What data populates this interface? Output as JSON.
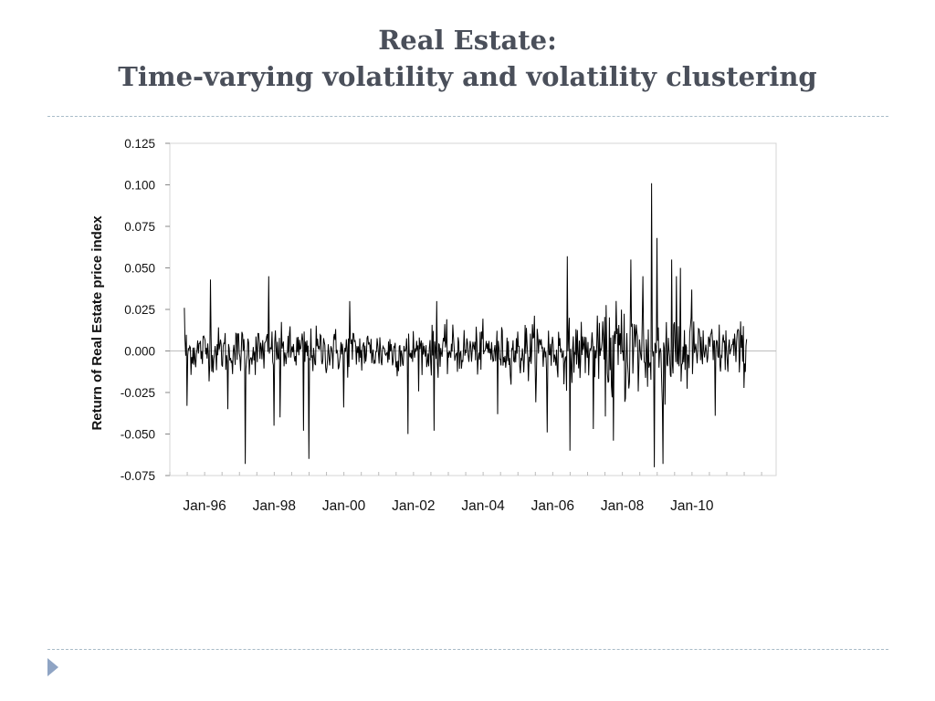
{
  "slide": {
    "title_line1": "Real Estate:",
    "title_line2": "Time-varying volatility and volatility clustering",
    "accent_color": "#4a4f5a",
    "rule_color": "#a9bcc8",
    "nav_icon": "play-triangle-icon"
  },
  "chart_data": {
    "type": "line",
    "title": "",
    "ylabel": "Return of Real Estate price index",
    "xlabel": "",
    "ylim": [
      -0.075,
      0.125
    ],
    "y_ticks": [
      -0.075,
      -0.05,
      -0.025,
      0.0,
      0.025,
      0.05,
      0.075,
      0.1,
      0.125
    ],
    "y_tick_labels": [
      "-0.075",
      "-0.050",
      "-0.025",
      "0.000",
      "0.025",
      "0.050",
      "0.075",
      "0.100",
      "0.125"
    ],
    "x_range": [
      "1995-01",
      "2012-06"
    ],
    "x_tick_labels": [
      "Jan-96",
      "Jan-98",
      "Jan-00",
      "Jan-02",
      "Jan-04",
      "Jan-06",
      "Jan-08",
      "Jan-10"
    ],
    "x_tick_dates": [
      "1996-01",
      "1998-01",
      "2000-01",
      "2002-01",
      "2004-01",
      "2006-01",
      "2008-01",
      "2010-01"
    ],
    "series_start": "1995-06",
    "series_end": "2011-08",
    "grid": false,
    "legend": "none",
    "line_color": "#000000",
    "volatility_regimes": [
      {
        "from": "1995-06",
        "to": "2004-12",
        "typical_amplitude": 0.01
      },
      {
        "from": "2005-01",
        "to": "2007-06",
        "typical_amplitude": 0.013
      },
      {
        "from": "2007-07",
        "to": "2009-12",
        "typical_amplitude": 0.022
      },
      {
        "from": "2010-01",
        "to": "2011-08",
        "typical_amplitude": 0.012
      }
    ],
    "notable_spikes": [
      {
        "date": "1995-06",
        "y": 0.026
      },
      {
        "date": "1995-07",
        "y": -0.033
      },
      {
        "date": "1996-03",
        "y": 0.043
      },
      {
        "date": "1996-09",
        "y": -0.035
      },
      {
        "date": "1997-03",
        "y": -0.068
      },
      {
        "date": "1997-11",
        "y": 0.045
      },
      {
        "date": "1998-01",
        "y": -0.045
      },
      {
        "date": "1998-03",
        "y": -0.04
      },
      {
        "date": "1998-11",
        "y": -0.048
      },
      {
        "date": "1999-01",
        "y": -0.065
      },
      {
        "date": "2000-01",
        "y": -0.034
      },
      {
        "date": "2000-03",
        "y": 0.03
      },
      {
        "date": "2001-11",
        "y": -0.05
      },
      {
        "date": "2002-08",
        "y": -0.048
      },
      {
        "date": "2002-09",
        "y": 0.03
      },
      {
        "date": "2004-06",
        "y": -0.038
      },
      {
        "date": "2005-11",
        "y": -0.049
      },
      {
        "date": "2006-06",
        "y": 0.057
      },
      {
        "date": "2006-07",
        "y": -0.06
      },
      {
        "date": "2007-03",
        "y": -0.047
      },
      {
        "date": "2007-10",
        "y": -0.054
      },
      {
        "date": "2008-04",
        "y": 0.055
      },
      {
        "date": "2008-08",
        "y": 0.045
      },
      {
        "date": "2008-11",
        "y": 0.101
      },
      {
        "date": "2008-12",
        "y": -0.07
      },
      {
        "date": "2009-01",
        "y": 0.068
      },
      {
        "date": "2009-03",
        "y": -0.068
      },
      {
        "date": "2009-06",
        "y": 0.055
      },
      {
        "date": "2009-09",
        "y": 0.05
      },
      {
        "date": "2010-09",
        "y": -0.039
      },
      {
        "date": "2010-01",
        "y": 0.037
      }
    ]
  }
}
